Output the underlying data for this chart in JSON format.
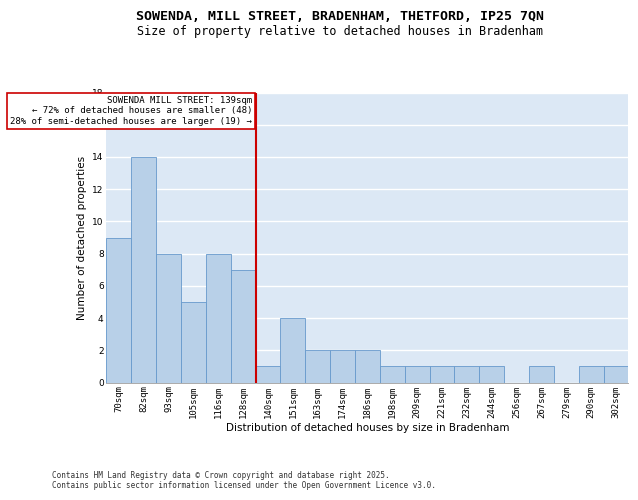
{
  "title1": "SOWENDA, MILL STREET, BRADENHAM, THETFORD, IP25 7QN",
  "title2": "Size of property relative to detached houses in Bradenham",
  "xlabel": "Distribution of detached houses by size in Bradenham",
  "ylabel": "Number of detached properties",
  "categories": [
    "70sqm",
    "82sqm",
    "93sqm",
    "105sqm",
    "116sqm",
    "128sqm",
    "140sqm",
    "151sqm",
    "163sqm",
    "174sqm",
    "186sqm",
    "198sqm",
    "209sqm",
    "221sqm",
    "232sqm",
    "244sqm",
    "256sqm",
    "267sqm",
    "279sqm",
    "290sqm",
    "302sqm"
  ],
  "values": [
    9,
    14,
    8,
    5,
    8,
    7,
    1,
    4,
    2,
    2,
    2,
    1,
    1,
    1,
    1,
    1,
    0,
    1,
    0,
    1,
    1
  ],
  "bar_color": "#b8d0e8",
  "bar_edgecolor": "#6699cc",
  "background_color": "#dce8f5",
  "grid_color": "#ffffff",
  "vline_index": 6,
  "vline_color": "#cc0000",
  "annotation_text": "SOWENDA MILL STREET: 139sqm\n← 72% of detached houses are smaller (48)\n28% of semi-detached houses are larger (19) →",
  "annotation_box_edgecolor": "#cc0000",
  "annotation_box_facecolor": "#ffffff",
  "ylim": [
    0,
    18
  ],
  "yticks": [
    0,
    2,
    4,
    6,
    8,
    10,
    12,
    14,
    16,
    18
  ],
  "footnote": "Contains HM Land Registry data © Crown copyright and database right 2025.\nContains public sector information licensed under the Open Government Licence v3.0.",
  "title_fontsize": 9.5,
  "subtitle_fontsize": 8.5,
  "axis_label_fontsize": 7.5,
  "tick_fontsize": 6.5,
  "annotation_fontsize": 6.5,
  "footnote_fontsize": 5.5
}
